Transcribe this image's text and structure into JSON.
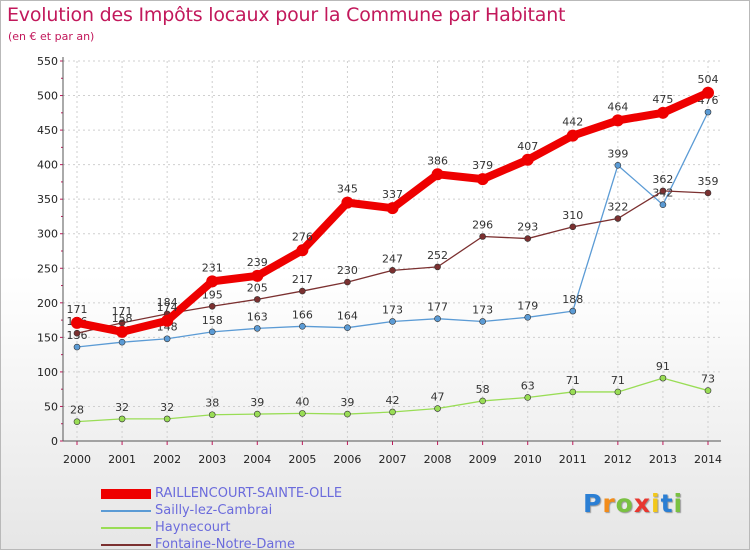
{
  "title": "Evolution des Impôts locaux pour la Commune par Habitant",
  "subtitle": "(en € et par an)",
  "logo": {
    "text": "Proxiti",
    "letter_colors": [
      "#2b7fd4",
      "#f28c1a",
      "#7ac142",
      "#e8372f",
      "#f2c81a",
      "#2b7fd4",
      "#7ac142"
    ]
  },
  "chart_data": {
    "type": "line",
    "x": [
      "2000",
      "2001",
      "2002",
      "2003",
      "2004",
      "2005",
      "2006",
      "2007",
      "2008",
      "2009",
      "2010",
      "2011",
      "2012",
      "2013",
      "2014"
    ],
    "ylim": [
      0,
      550
    ],
    "yticks": [
      0,
      50,
      100,
      150,
      200,
      250,
      300,
      350,
      400,
      450,
      500,
      550
    ],
    "grid": true,
    "legend_position": "bottom-left",
    "series": [
      {
        "name": "Sailly-lez-Cambrai",
        "color": "#5b9bd5",
        "values": [
          136,
          143,
          148,
          158,
          163,
          166,
          164,
          173,
          177,
          173,
          179,
          188,
          399,
          342,
          476
        ],
        "labels": [
          "136",
          "143",
          "148",
          "158",
          "163",
          "166",
          "164",
          "173",
          "177",
          "173",
          "179",
          "188",
          "399",
          "342",
          "476"
        ]
      },
      {
        "name": "Haynecourt",
        "color": "#99dd55",
        "values": [
          28,
          32,
          32,
          38,
          39,
          40,
          39,
          42,
          47,
          58,
          63,
          71,
          71,
          91,
          73
        ],
        "labels": [
          "28",
          "32",
          "32",
          "38",
          "39",
          "40",
          "39",
          "42",
          "47",
          "58",
          "63",
          "71",
          "71",
          "91",
          "73"
        ]
      },
      {
        "name": "Fontaine-Notre-Dame",
        "color": "#7b3030",
        "values": [
          156,
          171,
          184,
          195,
          205,
          217,
          230,
          247,
          252,
          296,
          293,
          310,
          322,
          362,
          359
        ],
        "labels": [
          "156",
          "171",
          "184",
          "195",
          "205",
          "217",
          "230",
          "247",
          "252",
          "296",
          "293",
          "310",
          "322",
          "362",
          "359"
        ]
      },
      {
        "name": "RAILLENCOURT-SAINTE-OLLE",
        "color": "#ee0000",
        "values": [
          171,
          158,
          174,
          231,
          239,
          276,
          345,
          337,
          386,
          379,
          407,
          442,
          464,
          475,
          504
        ],
        "labels": [
          "171",
          "158",
          "174",
          "231",
          "239",
          "276",
          "345",
          "337",
          "386",
          "379",
          "407",
          "442",
          "464",
          "475",
          "504"
        ]
      }
    ],
    "legend": [
      {
        "name": "RAILLENCOURT-SAINTE-OLLE",
        "color": "#ee0000"
      },
      {
        "name": "Sailly-lez-Cambrai",
        "color": "#5b9bd5"
      },
      {
        "name": "Haynecourt",
        "color": "#99dd55"
      },
      {
        "name": "Fontaine-Notre-Dame",
        "color": "#7b3030"
      }
    ]
  }
}
